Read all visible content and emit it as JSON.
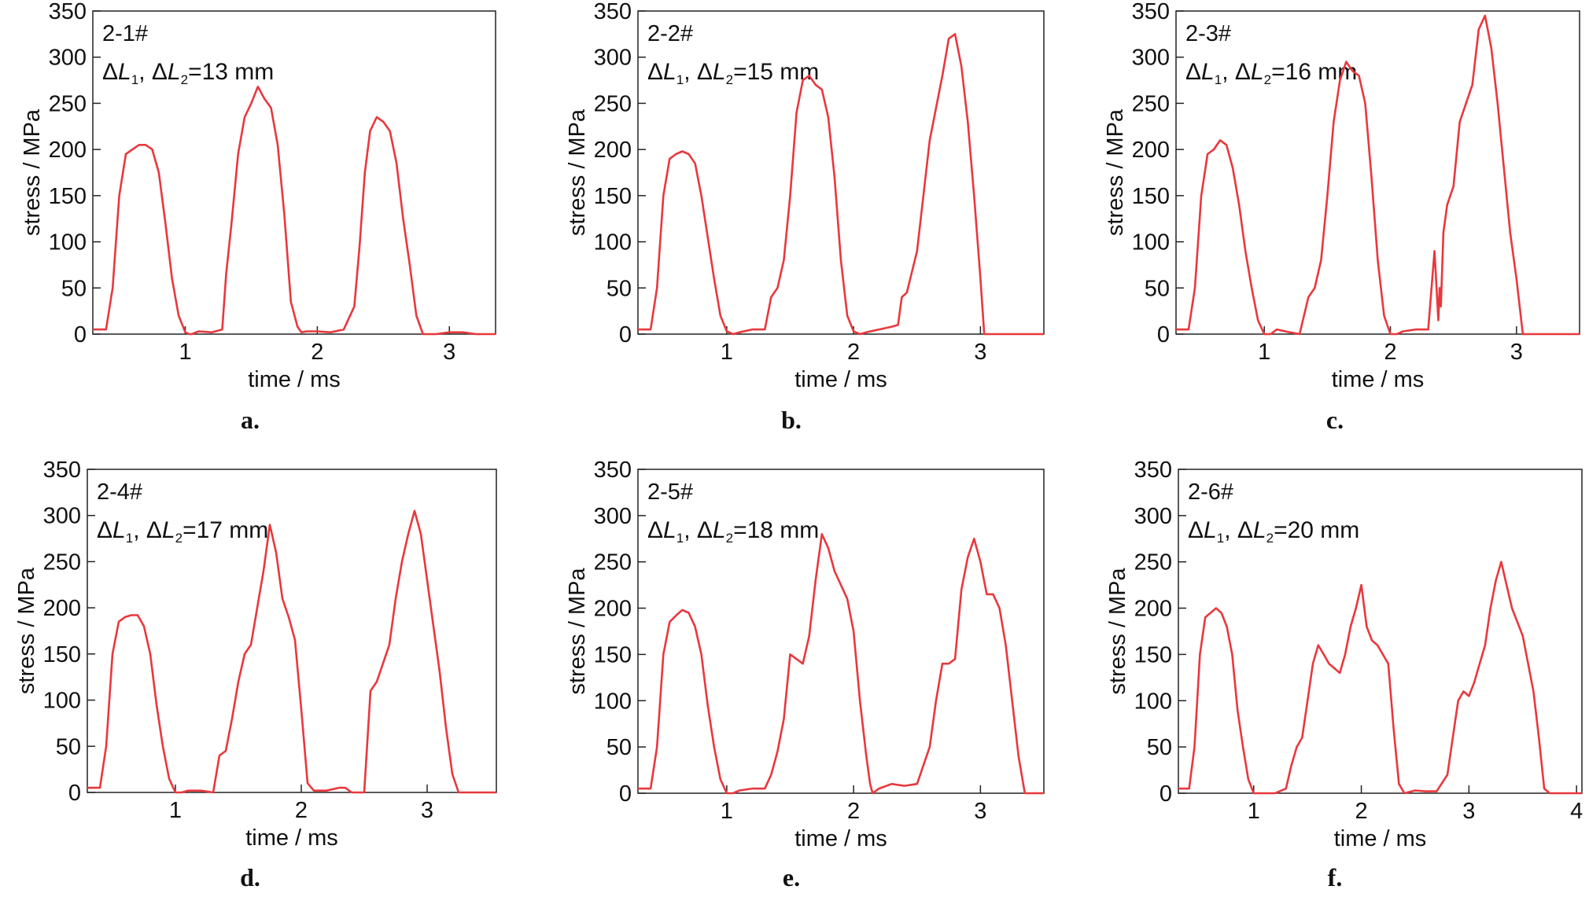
{
  "colors": {
    "trace": "#e8383d",
    "axes": "#222222",
    "text": "#111111"
  },
  "chart_data": [
    {
      "type": "line",
      "panel": "a.",
      "sample": "2-1#",
      "delta_label": {
        "d1": "ΔL",
        "s1": "1",
        "sep": ", ",
        "d2": "ΔL",
        "s2": "2",
        "tail": "=13 mm"
      },
      "xlabel": "time / ms",
      "ylabel": "stress / MPa",
      "xlim": [
        0.3,
        3.35
      ],
      "ylim": [
        0,
        350
      ],
      "xticks": [
        1,
        2,
        3
      ],
      "yticks": [
        0,
        50,
        100,
        150,
        200,
        250,
        300,
        350
      ],
      "series": [
        {
          "x": [
            0.3,
            0.4,
            0.45,
            0.5,
            0.55,
            0.6,
            0.65,
            0.7,
            0.75,
            0.8,
            0.85,
            0.9,
            0.95,
            1.0,
            1.03,
            1.05,
            1.1,
            1.2,
            1.28,
            1.31,
            1.35,
            1.4,
            1.45,
            1.5,
            1.55,
            1.6,
            1.65,
            1.7,
            1.75,
            1.8,
            1.85,
            1.88,
            1.92,
            2.0,
            2.1,
            2.2,
            2.28,
            2.32,
            2.36,
            2.4,
            2.45,
            2.5,
            2.55,
            2.6,
            2.65,
            2.7,
            2.75,
            2.8,
            2.83,
            2.9,
            3.0,
            3.1,
            3.2,
            3.35
          ],
          "y": [
            5,
            5,
            50,
            150,
            195,
            200,
            205,
            205,
            200,
            175,
            120,
            60,
            20,
            2,
            0,
            0,
            3,
            2,
            5,
            65,
            120,
            195,
            235,
            250,
            268,
            255,
            245,
            205,
            130,
            35,
            8,
            2,
            3,
            3,
            2,
            5,
            30,
            95,
            175,
            220,
            235,
            230,
            220,
            185,
            125,
            75,
            20,
            0,
            0,
            0,
            2,
            2,
            0,
            0
          ]
        }
      ]
    },
    {
      "type": "line",
      "panel": "b.",
      "sample": "2-2#",
      "delta_label": {
        "d1": "ΔL",
        "s1": "1",
        "sep": ", ",
        "d2": "ΔL",
        "s2": "2",
        "tail": "=15 mm"
      },
      "xlabel": "time / ms",
      "ylabel": "stress / MPa",
      "xlim": [
        0.3,
        3.5
      ],
      "ylim": [
        0,
        350
      ],
      "xticks": [
        1,
        2,
        3
      ],
      "yticks": [
        0,
        50,
        100,
        150,
        200,
        250,
        300,
        350
      ],
      "series": [
        {
          "x": [
            0.3,
            0.4,
            0.45,
            0.5,
            0.55,
            0.6,
            0.65,
            0.7,
            0.75,
            0.8,
            0.85,
            0.9,
            0.95,
            1.0,
            1.05,
            1.1,
            1.2,
            1.3,
            1.35,
            1.4,
            1.45,
            1.5,
            1.55,
            1.6,
            1.65,
            1.7,
            1.75,
            1.8,
            1.85,
            1.9,
            1.95,
            2.0,
            2.05,
            2.1,
            2.2,
            2.3,
            2.35,
            2.38,
            2.42,
            2.5,
            2.6,
            2.7,
            2.75,
            2.8,
            2.85,
            2.9,
            2.95,
            3.0,
            3.03,
            3.1,
            3.2,
            3.3,
            3.5
          ],
          "y": [
            5,
            5,
            50,
            150,
            190,
            195,
            198,
            195,
            185,
            150,
            105,
            60,
            20,
            3,
            0,
            2,
            5,
            5,
            40,
            50,
            80,
            150,
            240,
            275,
            280,
            270,
            265,
            235,
            170,
            80,
            20,
            3,
            0,
            2,
            5,
            8,
            10,
            40,
            45,
            90,
            210,
            280,
            320,
            325,
            290,
            230,
            150,
            60,
            0,
            0,
            0,
            0,
            0
          ]
        }
      ]
    },
    {
      "type": "line",
      "panel": "c.",
      "sample": "2-3#",
      "delta_label": {
        "d1": "ΔL",
        "s1": "1",
        "sep": ", ",
        "d2": "ΔL",
        "s2": "2",
        "tail": "=16 mm"
      },
      "xlabel": "time / ms",
      "ylabel": "stress / MPa",
      "xlim": [
        0.3,
        3.5
      ],
      "ylim": [
        0,
        350
      ],
      "xticks": [
        1,
        2,
        3
      ],
      "yticks": [
        0,
        50,
        100,
        150,
        200,
        250,
        300,
        350
      ],
      "series": [
        {
          "x": [
            0.3,
            0.4,
            0.45,
            0.5,
            0.55,
            0.6,
            0.65,
            0.7,
            0.75,
            0.8,
            0.85,
            0.9,
            0.95,
            1.0,
            1.05,
            1.1,
            1.2,
            1.28,
            1.35,
            1.4,
            1.45,
            1.5,
            1.55,
            1.6,
            1.65,
            1.7,
            1.75,
            1.8,
            1.85,
            1.9,
            1.95,
            2.0,
            2.05,
            2.1,
            2.2,
            2.3,
            2.35,
            2.38,
            2.39,
            2.4,
            2.42,
            2.45,
            2.5,
            2.55,
            2.6,
            2.65,
            2.7,
            2.75,
            2.8,
            2.85,
            2.9,
            2.95,
            3.0,
            3.05,
            3.1,
            3.2,
            3.3,
            3.5
          ],
          "y": [
            5,
            5,
            50,
            150,
            195,
            200,
            210,
            205,
            180,
            140,
            90,
            50,
            15,
            0,
            0,
            5,
            2,
            0,
            40,
            50,
            80,
            150,
            230,
            275,
            295,
            285,
            280,
            250,
            170,
            80,
            20,
            0,
            0,
            3,
            5,
            5,
            90,
            15,
            50,
            30,
            110,
            140,
            160,
            230,
            250,
            270,
            330,
            345,
            310,
            250,
            180,
            110,
            60,
            0,
            0,
            0,
            0,
            0
          ]
        }
      ]
    },
    {
      "type": "line",
      "panel": "d.",
      "sample": "2-4#",
      "delta_label": {
        "d1": "ΔL",
        "s1": "1",
        "sep": ", ",
        "d2": "ΔL",
        "s2": "2",
        "tail": "=17 mm"
      },
      "xlabel": "time / ms",
      "ylabel": "stress / MPa",
      "xlim": [
        0.3,
        3.55
      ],
      "ylim": [
        0,
        350
      ],
      "xticks": [
        1,
        2,
        3
      ],
      "yticks": [
        0,
        50,
        100,
        150,
        200,
        250,
        300,
        350
      ],
      "series": [
        {
          "x": [
            0.3,
            0.4,
            0.45,
            0.5,
            0.55,
            0.6,
            0.65,
            0.7,
            0.75,
            0.8,
            0.85,
            0.9,
            0.95,
            1.0,
            1.05,
            1.1,
            1.2,
            1.3,
            1.35,
            1.4,
            1.45,
            1.5,
            1.55,
            1.6,
            1.65,
            1.7,
            1.75,
            1.8,
            1.85,
            1.9,
            1.95,
            2.0,
            2.05,
            2.1,
            2.2,
            2.3,
            2.35,
            2.4,
            2.5,
            2.55,
            2.6,
            2.65,
            2.7,
            2.75,
            2.8,
            2.85,
            2.9,
            2.95,
            3.0,
            3.05,
            3.1,
            3.15,
            3.2,
            3.25,
            3.3,
            3.4,
            3.55
          ],
          "y": [
            5,
            5,
            50,
            150,
            185,
            190,
            192,
            192,
            180,
            150,
            95,
            50,
            15,
            0,
            0,
            2,
            2,
            0,
            40,
            45,
            80,
            120,
            150,
            160,
            200,
            240,
            290,
            260,
            210,
            190,
            165,
            90,
            10,
            2,
            2,
            5,
            5,
            0,
            0,
            110,
            120,
            140,
            160,
            210,
            250,
            280,
            305,
            280,
            230,
            180,
            130,
            70,
            20,
            0,
            0,
            0,
            0
          ]
        }
      ]
    },
    {
      "type": "line",
      "panel": "e.",
      "sample": "2-5#",
      "delta_label": {
        "d1": "ΔL",
        "s1": "1",
        "sep": ", ",
        "d2": "ΔL",
        "s2": "2",
        "tail": "=18 mm"
      },
      "xlabel": "time / ms",
      "ylabel": "stress / MPa",
      "xlim": [
        0.3,
        3.5
      ],
      "ylim": [
        0,
        350
      ],
      "xticks": [
        1,
        2,
        3
      ],
      "yticks": [
        0,
        50,
        100,
        150,
        200,
        250,
        300,
        350
      ],
      "series": [
        {
          "x": [
            0.3,
            0.4,
            0.45,
            0.5,
            0.55,
            0.6,
            0.65,
            0.7,
            0.75,
            0.8,
            0.85,
            0.9,
            0.95,
            1.0,
            1.05,
            1.1,
            1.2,
            1.3,
            1.35,
            1.4,
            1.45,
            1.5,
            1.55,
            1.6,
            1.65,
            1.7,
            1.75,
            1.8,
            1.85,
            1.9,
            1.95,
            2.0,
            2.05,
            2.1,
            2.13,
            2.15,
            2.2,
            2.3,
            2.4,
            2.5,
            2.6,
            2.65,
            2.7,
            2.75,
            2.8,
            2.85,
            2.9,
            2.95,
            3.0,
            3.05,
            3.1,
            3.15,
            3.2,
            3.25,
            3.3,
            3.35,
            3.38,
            3.5
          ],
          "y": [
            5,
            5,
            50,
            150,
            185,
            192,
            198,
            195,
            180,
            150,
            95,
            50,
            15,
            0,
            0,
            3,
            5,
            5,
            20,
            45,
            80,
            150,
            145,
            140,
            170,
            230,
            280,
            265,
            240,
            225,
            210,
            175,
            100,
            40,
            10,
            0,
            5,
            10,
            8,
            10,
            50,
            100,
            140,
            140,
            145,
            220,
            255,
            275,
            250,
            215,
            215,
            200,
            160,
            100,
            40,
            0,
            0,
            0
          ]
        }
      ]
    },
    {
      "type": "line",
      "panel": "f.",
      "sample": "2-6#",
      "delta_label": {
        "d1": "ΔL",
        "s1": "1",
        "sep": ", ",
        "d2": "ΔL",
        "s2": "2",
        "tail": "=20 mm"
      },
      "xlabel": "time / ms",
      "ylabel": "stress / MPa",
      "xlim": [
        0.3,
        4.05
      ],
      "ylim": [
        0,
        350
      ],
      "xticks": [
        1,
        2,
        3,
        4
      ],
      "yticks": [
        0,
        50,
        100,
        150,
        200,
        250,
        300,
        350
      ],
      "series": [
        {
          "x": [
            0.3,
            0.4,
            0.45,
            0.5,
            0.55,
            0.6,
            0.65,
            0.7,
            0.75,
            0.8,
            0.85,
            0.9,
            0.95,
            1.0,
            1.05,
            1.1,
            1.2,
            1.3,
            1.35,
            1.4,
            1.45,
            1.5,
            1.55,
            1.6,
            1.65,
            1.7,
            1.75,
            1.8,
            1.85,
            1.9,
            1.95,
            2.0,
            2.05,
            2.1,
            2.15,
            2.2,
            2.25,
            2.3,
            2.35,
            2.4,
            2.5,
            2.6,
            2.7,
            2.8,
            2.85,
            2.9,
            2.95,
            3.0,
            3.05,
            3.1,
            3.15,
            3.2,
            3.25,
            3.3,
            3.35,
            3.4,
            3.45,
            3.5,
            3.55,
            3.6,
            3.65,
            3.7,
            3.75,
            3.8,
            3.9,
            4.05
          ],
          "y": [
            5,
            5,
            50,
            150,
            190,
            195,
            200,
            195,
            180,
            150,
            90,
            50,
            15,
            0,
            0,
            0,
            0,
            5,
            30,
            50,
            60,
            100,
            140,
            160,
            150,
            140,
            135,
            130,
            150,
            180,
            200,
            225,
            180,
            165,
            160,
            150,
            140,
            70,
            10,
            0,
            3,
            2,
            2,
            20,
            60,
            100,
            110,
            105,
            120,
            140,
            160,
            200,
            230,
            250,
            225,
            200,
            185,
            170,
            140,
            110,
            60,
            5,
            0,
            0,
            0,
            0
          ]
        }
      ]
    }
  ],
  "panel_letters": [
    "a.",
    "b.",
    "c.",
    "d.",
    "e.",
    "f."
  ]
}
